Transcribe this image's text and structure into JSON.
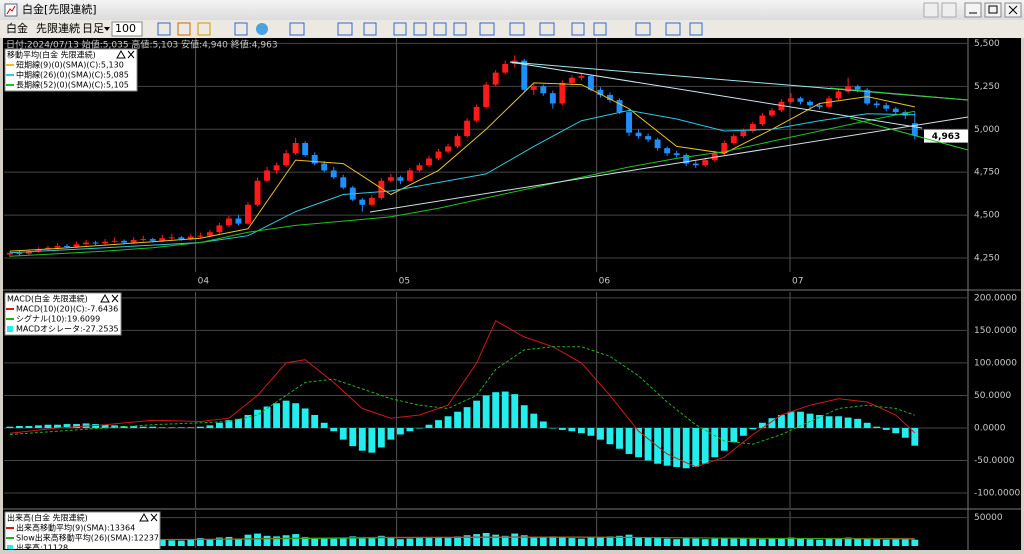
{
  "window": {
    "title": "白金[先限連続]"
  },
  "toolbar": {
    "items": [
      "白金",
      "先限連続",
      "日足"
    ],
    "count": "100"
  },
  "info": "日付:2024/07/13 始値:5,035 高値:5,103 安値:4,940 終値:4,963",
  "price_panel": {
    "type": "candlestick",
    "legend_title": "移動平均(白金 先限連続)",
    "colors": {
      "up": "#ff1a1a",
      "down": "#1e8fff"
    },
    "xlim": [
      -0.3,
      96.7
    ],
    "xticks": [
      {
        "value": 19.5,
        "label": "04"
      },
      {
        "value": 40.6,
        "label": "05"
      },
      {
        "value": 61.6,
        "label": "06"
      },
      {
        "value": 81.9,
        "label": "07"
      }
    ],
    "ylim": [
      4180,
      5520
    ],
    "yticks": [
      {
        "value": 4250,
        "label": "4,250"
      },
      {
        "value": 4500,
        "label": "4,500"
      },
      {
        "value": 4750,
        "label": "4,750"
      },
      {
        "value": 5000,
        "label": "5,000"
      },
      {
        "value": 5250,
        "label": "5,250"
      },
      {
        "value": 5500,
        "label": "5,500"
      }
    ],
    "close_label": "4,963",
    "candles": [
      [
        4270,
        4290,
        4255,
        4280
      ],
      [
        4280,
        4292,
        4262,
        4275
      ],
      [
        4275,
        4300,
        4268,
        4290
      ],
      [
        4290,
        4312,
        4282,
        4300
      ],
      [
        4300,
        4322,
        4292,
        4310
      ],
      [
        4310,
        4335,
        4300,
        4320
      ],
      [
        4320,
        4330,
        4305,
        4315
      ],
      [
        4315,
        4345,
        4308,
        4330
      ],
      [
        4330,
        4355,
        4322,
        4340
      ],
      [
        4340,
        4350,
        4325,
        4335
      ],
      [
        4335,
        4360,
        4328,
        4345
      ],
      [
        4345,
        4370,
        4338,
        4350
      ],
      [
        4350,
        4358,
        4330,
        4340
      ],
      [
        4340,
        4372,
        4332,
        4355
      ],
      [
        4355,
        4380,
        4345,
        4360
      ],
      [
        4360,
        4368,
        4340,
        4350
      ],
      [
        4350,
        4385,
        4342,
        4365
      ],
      [
        4365,
        4390,
        4355,
        4370
      ],
      [
        4370,
        4378,
        4350,
        4360
      ],
      [
        4360,
        4392,
        4352,
        4375
      ],
      [
        4375,
        4398,
        4365,
        4380
      ],
      [
        4380,
        4415,
        4372,
        4400
      ],
      [
        4400,
        4455,
        4392,
        4440
      ],
      [
        4440,
        4495,
        4430,
        4480
      ],
      [
        4480,
        4500,
        4440,
        4450
      ],
      [
        4450,
        4575,
        4445,
        4560
      ],
      [
        4560,
        4720,
        4550,
        4700
      ],
      [
        4700,
        4780,
        4690,
        4760
      ],
      [
        4760,
        4805,
        4740,
        4790
      ],
      [
        4790,
        4880,
        4780,
        4860
      ],
      [
        4860,
        4950,
        4850,
        4920
      ],
      [
        4920,
        4930,
        4840,
        4850
      ],
      [
        4850,
        4865,
        4790,
        4800
      ],
      [
        4800,
        4815,
        4750,
        4760
      ],
      [
        4760,
        4780,
        4710,
        4720
      ],
      [
        4720,
        4735,
        4650,
        4660
      ],
      [
        4660,
        4670,
        4580,
        4590
      ],
      [
        4590,
        4600,
        4520,
        4560
      ],
      [
        4560,
        4615,
        4550,
        4600
      ],
      [
        4600,
        4715,
        4590,
        4700
      ],
      [
        4700,
        4740,
        4690,
        4720
      ],
      [
        4720,
        4730,
        4680,
        4700
      ],
      [
        4700,
        4775,
        4695,
        4760
      ],
      [
        4760,
        4805,
        4750,
        4790
      ],
      [
        4790,
        4845,
        4780,
        4830
      ],
      [
        4830,
        4885,
        4820,
        4870
      ],
      [
        4870,
        4915,
        4860,
        4900
      ],
      [
        4900,
        4975,
        4890,
        4960
      ],
      [
        4960,
        5065,
        4950,
        5050
      ],
      [
        5050,
        5145,
        5040,
        5130
      ],
      [
        5130,
        5275,
        5120,
        5260
      ],
      [
        5260,
        5345,
        5250,
        5330
      ],
      [
        5330,
        5400,
        5320,
        5380
      ],
      [
        5380,
        5430,
        5360,
        5400
      ],
      [
        5400,
        5410,
        5220,
        5230
      ],
      [
        5230,
        5265,
        5200,
        5250
      ],
      [
        5250,
        5260,
        5195,
        5210
      ],
      [
        5210,
        5225,
        5120,
        5150
      ],
      [
        5150,
        5285,
        5140,
        5270
      ],
      [
        5270,
        5315,
        5255,
        5300
      ],
      [
        5300,
        5330,
        5285,
        5310
      ],
      [
        5310,
        5320,
        5220,
        5230
      ],
      [
        5230,
        5245,
        5185,
        5200
      ],
      [
        5200,
        5215,
        5155,
        5170
      ],
      [
        5170,
        5180,
        5090,
        5100
      ],
      [
        5100,
        5110,
        4960,
        4980
      ],
      [
        4980,
        5000,
        4945,
        4960
      ],
      [
        4960,
        4975,
        4925,
        4940
      ],
      [
        4940,
        4950,
        4875,
        4890
      ],
      [
        4890,
        4900,
        4845,
        4860
      ],
      [
        4860,
        4875,
        4835,
        4850
      ],
      [
        4850,
        4860,
        4785,
        4800
      ],
      [
        4800,
        4815,
        4775,
        4790
      ],
      [
        4790,
        4835,
        4780,
        4820
      ],
      [
        4820,
        4875,
        4810,
        4860
      ],
      [
        4860,
        4935,
        4850,
        4920
      ],
      [
        4920,
        4975,
        4910,
        4960
      ],
      [
        4960,
        5005,
        4950,
        4990
      ],
      [
        4990,
        5045,
        4980,
        5030
      ],
      [
        5030,
        5095,
        5020,
        5080
      ],
      [
        5080,
        5125,
        5070,
        5110
      ],
      [
        5110,
        5175,
        5100,
        5160
      ],
      [
        5160,
        5210,
        5150,
        5180
      ],
      [
        5180,
        5190,
        5145,
        5160
      ],
      [
        5160,
        5170,
        5125,
        5140
      ],
      [
        5140,
        5150,
        5115,
        5130
      ],
      [
        5130,
        5195,
        5120,
        5180
      ],
      [
        5180,
        5235,
        5170,
        5220
      ],
      [
        5220,
        5300,
        5210,
        5250
      ],
      [
        5250,
        5260,
        5215,
        5230
      ],
      [
        5230,
        5240,
        5140,
        5150
      ],
      [
        5150,
        5165,
        5125,
        5140
      ],
      [
        5140,
        5155,
        5105,
        5120
      ],
      [
        5120,
        5130,
        5085,
        5100
      ],
      [
        5100,
        5110,
        5060,
        5080
      ],
      [
        5035,
        5103,
        4940,
        4963
      ]
    ],
    "series": [
      {
        "name": "短期線(9)(0)(SMA)(C):5,130",
        "color": "#e8c020",
        "x": [
          0,
          5,
          10,
          15,
          20,
          25,
          30,
          35,
          40,
          45,
          50,
          55,
          60,
          65,
          70,
          75,
          80,
          85,
          90,
          95
        ],
        "values": [
          4290,
          4305,
          4325,
          4345,
          4365,
          4420,
          4820,
          4800,
          4620,
          4760,
          5000,
          5270,
          5260,
          5120,
          4900,
          4860,
          5000,
          5150,
          5190,
          5130
        ]
      },
      {
        "name": "中期線(26)(0)(SMA)(C):5,085",
        "color": "#30c8e0",
        "x": [
          0,
          5,
          10,
          15,
          20,
          25,
          30,
          35,
          40,
          45,
          50,
          55,
          60,
          65,
          70,
          75,
          80,
          85,
          90,
          95
        ],
        "values": [
          4280,
          4295,
          4310,
          4325,
          4340,
          4380,
          4520,
          4620,
          4640,
          4690,
          4740,
          4900,
          5050,
          5110,
          5060,
          4990,
          5000,
          5050,
          5090,
          5085
        ]
      },
      {
        "name": "長期線(52)(0)(SMA)(C):5,105",
        "color": "#20c020",
        "x": [
          0,
          5,
          10,
          15,
          20,
          25,
          30,
          35,
          40,
          45,
          50,
          55,
          60,
          65,
          70,
          75,
          80,
          85,
          90,
          95
        ],
        "values": [
          4260,
          4275,
          4290,
          4310,
          4340,
          4400,
          4440,
          4465,
          4490,
          4540,
          4600,
          4660,
          4720,
          4780,
          4830,
          4870,
          4930,
          4990,
          5050,
          5105
        ]
      }
    ]
  },
  "macd_panel": {
    "type": "oscillator",
    "legend_title": "MACD(白金 先限連続)",
    "ylim": [
      -120,
      206
    ],
    "yticks": [
      {
        "value": -100,
        "label": "-100.0000"
      },
      {
        "value": -50,
        "label": "-50.0000"
      },
      {
        "value": 0,
        "label": "0.0000"
      },
      {
        "value": 50,
        "label": "50.0000"
      },
      {
        "value": 100,
        "label": "100.0000"
      },
      {
        "value": 150,
        "label": "150.0000"
      },
      {
        "value": 200,
        "label": "200.0000"
      }
    ],
    "series": [
      {
        "name": "MACD(10)(20)(C):-7.6436",
        "color": "#d01818",
        "x": [
          0,
          5,
          10,
          15,
          20,
          23,
          26,
          29,
          31,
          34,
          37,
          40,
          43,
          46,
          49,
          51,
          54,
          57,
          60,
          63,
          66,
          69,
          72,
          75,
          78,
          81,
          84,
          87,
          90,
          93,
          95
        ],
        "values": [
          -8,
          0,
          5,
          12,
          10,
          15,
          50,
          100,
          105,
          70,
          30,
          15,
          20,
          35,
          100,
          165,
          140,
          125,
          100,
          50,
          -5,
          -40,
          -60,
          -45,
          -10,
          20,
          35,
          45,
          40,
          20,
          -7.6436
        ]
      },
      {
        "name": "シグナル(10):19.6099",
        "color": "#20b020",
        "dash": true,
        "x": [
          0,
          5,
          10,
          15,
          20,
          23,
          26,
          29,
          31,
          34,
          37,
          40,
          43,
          46,
          49,
          51,
          54,
          57,
          60,
          63,
          66,
          69,
          72,
          75,
          78,
          81,
          84,
          87,
          90,
          93,
          95
        ],
        "values": [
          -10,
          -5,
          0,
          5,
          8,
          10,
          20,
          50,
          70,
          75,
          60,
          45,
          35,
          30,
          50,
          90,
          120,
          125,
          125,
          110,
          80,
          40,
          5,
          -20,
          -25,
          -10,
          10,
          30,
          35,
          30,
          19.6099
        ]
      }
    ],
    "bars": {
      "name": "MACDオシレータ:-27.2535",
      "color": "#22eeee",
      "values": [
        2,
        3,
        3,
        4,
        5,
        5,
        6,
        6,
        7,
        6,
        5,
        4,
        3,
        3,
        2,
        2,
        1,
        1,
        1,
        1,
        2,
        4,
        8,
        12,
        14,
        20,
        28,
        33,
        38,
        42,
        38,
        30,
        20,
        8,
        -5,
        -18,
        -28,
        -35,
        -38,
        -30,
        -18,
        -10,
        -5,
        0,
        5,
        12,
        18,
        25,
        32,
        42,
        50,
        55,
        56,
        52,
        35,
        22,
        10,
        0,
        -3,
        -5,
        -8,
        -12,
        -18,
        -25,
        -32,
        -40,
        -45,
        -50,
        -55,
        -58,
        -60,
        -62,
        -60,
        -55,
        -45,
        -35,
        -22,
        -12,
        -2,
        8,
        15,
        20,
        25,
        25,
        22,
        20,
        18,
        18,
        16,
        14,
        8,
        2,
        -3,
        -8,
        -15,
        -27.2535
      ]
    }
  },
  "volume_panel": {
    "type": "volume",
    "legend_title": "出来高(白金 先限連続)",
    "ylim": [
      0,
      60000
    ],
    "yticks": [
      50000
    ],
    "bars": {
      "name": "出来高:11128",
      "color": "#22eeee",
      "values": [
        9000,
        11000,
        8000,
        12000,
        10000,
        9500,
        11000,
        13000,
        9000,
        10000,
        12000,
        8500,
        9000,
        11000,
        10500,
        9000,
        12000,
        10000,
        9500,
        11000,
        14000,
        12000,
        15000,
        16000,
        13000,
        20000,
        22000,
        18000,
        17000,
        19000,
        21000,
        16000,
        15000,
        14000,
        13000,
        15000,
        17000,
        16000,
        14000,
        18000,
        15000,
        12000,
        13000,
        14000,
        15000,
        16000,
        14000,
        17000,
        19000,
        21000,
        23000,
        20000,
        18000,
        22000,
        19000,
        16000,
        15000,
        17000,
        16000,
        14000,
        13000,
        15000,
        16000,
        17000,
        18000,
        20000,
        16000,
        15000,
        14000,
        13000,
        12000,
        14000,
        13000,
        12000,
        13000,
        14000,
        15000,
        14000,
        13000,
        12000,
        13000,
        14000,
        15000,
        13000,
        12000,
        11000,
        13000,
        14000,
        15000,
        13000,
        14000,
        12000,
        11000,
        12000,
        13000,
        11128
      ]
    },
    "series": [
      {
        "name": "出来高移動平均(9)(SMA):13364",
        "color": "#d01818",
        "x": [
          0,
          20,
          40,
          60,
          80,
          95
        ],
        "values": [
          10500,
          12000,
          15500,
          16000,
          13500,
          13364
        ]
      },
      {
        "name": "Slow出来高移動平均(26)(SMA):12237",
        "color": "#20b020",
        "x": [
          0,
          20,
          40,
          60,
          80,
          95
        ],
        "values": [
          10000,
          11500,
          14500,
          15500,
          13500,
          12237
        ]
      }
    ]
  }
}
